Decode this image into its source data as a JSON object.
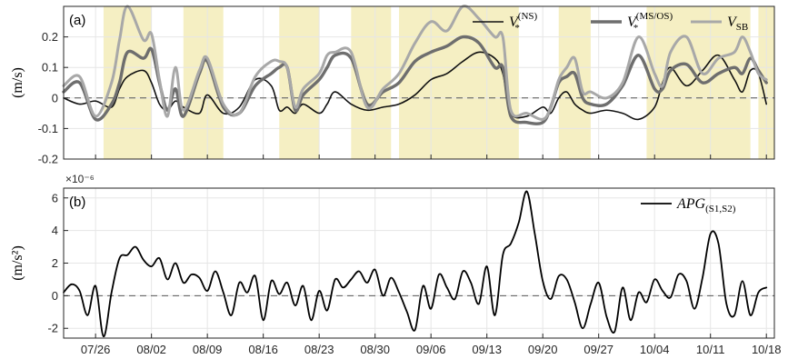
{
  "chart_data": [
    {
      "type": "line",
      "panel_label": "(a)",
      "ylabel": "(m/s)",
      "x_range": [
        "2016-07-22",
        "2016-10-19"
      ],
      "x_ticks": [
        "07/26",
        "08/02",
        "08/09",
        "08/16",
        "08/23",
        "08/30",
        "09/06",
        "09/13",
        "09/20",
        "09/27",
        "10/04",
        "10/11",
        "10/18"
      ],
      "ylim": [
        -0.2,
        0.3
      ],
      "yticks": [
        -0.2,
        -0.1,
        0,
        0.1,
        0.2
      ],
      "ytick_labels": [
        "-0.2",
        "-0.1",
        "0",
        "0.1",
        "0.2"
      ],
      "grid": true,
      "zero_line": "dashed",
      "legend_position": "top-right",
      "shaded_periods": [
        [
          "07/27",
          "08/01"
        ],
        [
          "08/06",
          "08/10"
        ],
        [
          "08/18",
          "08/22"
        ],
        [
          "08/27",
          "08/31"
        ],
        [
          "09/02",
          "09/16"
        ],
        [
          "09/22",
          "09/25"
        ],
        [
          "10/03",
          "10/15"
        ],
        [
          "10/17",
          "10/18"
        ]
      ],
      "shade_color": "#f5efc3",
      "series": [
        {
          "name": "V*(NS)",
          "legend_main": "V",
          "legend_sub": "*",
          "legend_sup": "(NS)",
          "color": "#111111",
          "width": 1.6,
          "x": [
            0,
            2,
            4,
            6,
            7,
            8,
            10,
            11,
            12,
            13,
            14,
            15,
            17,
            18,
            20,
            22,
            24,
            26,
            27,
            28,
            29,
            30,
            32,
            33,
            34,
            36,
            38,
            40,
            42,
            44,
            46,
            48,
            50,
            52,
            54,
            55,
            56,
            58,
            60,
            61,
            62,
            63,
            64,
            65,
            66,
            68,
            70,
            72,
            74,
            75,
            76,
            78,
            80,
            82,
            84,
            85,
            86,
            87,
            88
          ],
          "y": [
            0,
            -0.02,
            -0.01,
            -0.03,
            0.03,
            0.07,
            0.09,
            0.05,
            -0.02,
            -0.04,
            -0.01,
            -0.03,
            -0.05,
            0.01,
            -0.05,
            -0.03,
            0.06,
            0.04,
            -0.04,
            -0.03,
            -0.05,
            -0.02,
            -0.05,
            -0.02,
            0.02,
            -0.02,
            -0.04,
            -0.03,
            -0.02,
            0.01,
            0.06,
            0.08,
            0.12,
            0.15,
            0.13,
            0.08,
            -0.05,
            -0.06,
            -0.03,
            -0.05,
            0.0,
            0.02,
            -0.02,
            -0.04,
            -0.05,
            -0.04,
            -0.05,
            -0.07,
            -0.03,
            0.05,
            0.1,
            0.04,
            0.09,
            0.14,
            0.06,
            0.02,
            0.09,
            0.08,
            -0.02
          ]
        },
        {
          "name": "V*(MS/OS)",
          "legend_main": "V",
          "legend_sub": "*",
          "legend_sup": "(MS/OS)",
          "color": "#6e6e6e",
          "width": 3.4,
          "x": [
            0,
            2,
            4,
            6,
            7,
            8,
            10,
            11,
            12,
            13,
            14,
            15,
            17,
            18,
            20,
            22,
            24,
            26,
            27,
            28,
            29,
            30,
            32,
            33,
            34,
            36,
            38,
            40,
            42,
            44,
            46,
            48,
            50,
            52,
            54,
            55,
            56,
            58,
            60,
            61,
            62,
            63,
            64,
            65,
            66,
            68,
            70,
            72,
            74,
            75,
            76,
            78,
            80,
            82,
            84,
            85,
            86,
            87,
            88
          ],
          "y": [
            0.02,
            0.05,
            -0.07,
            -0.02,
            0.05,
            0.15,
            0.13,
            0.16,
            0.05,
            -0.04,
            0.03,
            -0.06,
            0.08,
            0.12,
            -0.03,
            -0.05,
            0.04,
            0.08,
            0.1,
            0.1,
            -0.04,
            0.01,
            0.06,
            0.1,
            0.14,
            0.13,
            -0.02,
            0.02,
            0.05,
            0.12,
            0.15,
            0.17,
            0.2,
            0.18,
            0.1,
            0.1,
            -0.06,
            -0.08,
            -0.08,
            -0.03,
            0.05,
            0.07,
            0.08,
            0.0,
            -0.02,
            -0.02,
            0.04,
            0.14,
            0.03,
            0.03,
            0.09,
            0.11,
            0.05,
            0.08,
            0.1,
            0.08,
            0.13,
            0.09,
            0.05
          ]
        },
        {
          "name": "VSB",
          "legend_main": "V",
          "legend_sub": "SB",
          "legend_sup": "",
          "color": "#a8a8a8",
          "width": 3.0,
          "x": [
            0,
            2,
            4,
            6,
            7,
            8,
            10,
            11,
            12,
            13,
            14,
            15,
            17,
            18,
            20,
            22,
            24,
            26,
            27,
            28,
            29,
            30,
            32,
            33,
            34,
            36,
            38,
            40,
            42,
            44,
            46,
            48,
            50,
            52,
            54,
            55,
            56,
            58,
            60,
            61,
            62,
            63,
            64,
            65,
            66,
            68,
            70,
            72,
            74,
            75,
            76,
            78,
            80,
            82,
            84,
            85,
            86,
            87,
            88
          ],
          "y": [
            0.04,
            0.07,
            -0.06,
            0.05,
            0.19,
            0.3,
            0.19,
            0.21,
            0.06,
            -0.06,
            0.1,
            -0.04,
            0.09,
            0.13,
            -0.02,
            -0.05,
            0.07,
            0.12,
            0.12,
            0.1,
            -0.03,
            0.03,
            0.08,
            0.14,
            0.15,
            0.15,
            -0.03,
            0.03,
            0.08,
            0.18,
            0.25,
            0.22,
            0.3,
            0.26,
            0.2,
            0.2,
            -0.04,
            -0.05,
            -0.07,
            -0.03,
            0.06,
            0.1,
            0.13,
            0.02,
            0.02,
            0.0,
            0.05,
            0.2,
            0.08,
            0.04,
            0.15,
            0.2,
            0.08,
            0.13,
            0.15,
            0.2,
            0.15,
            0.08,
            0.06
          ]
        }
      ]
    },
    {
      "type": "line",
      "panel_label": "(b)",
      "ylabel": "(m/s²)",
      "y_multiplier": "×10⁻⁶",
      "x_range": [
        "2016-07-22",
        "2016-10-19"
      ],
      "x_ticks": [
        "07/26",
        "08/02",
        "08/09",
        "08/16",
        "08/23",
        "08/30",
        "09/06",
        "09/13",
        "09/20",
        "09/27",
        "10/04",
        "10/11",
        "10/18"
      ],
      "ylim": [
        -2.6,
        6.6
      ],
      "yticks": [
        -2,
        0,
        2,
        4,
        6
      ],
      "ytick_labels": [
        "-2",
        "0",
        "2",
        "4",
        "6"
      ],
      "grid": true,
      "zero_line": "dashed",
      "legend_position": "top-right",
      "series": [
        {
          "name": "APG(S1,S2)",
          "legend_main": "APG",
          "legend_sub": "(S1,S2)",
          "legend_sup": "",
          "color": "#000000",
          "width": 1.8,
          "x": [
            0,
            1,
            2,
            3,
            4,
            5,
            6,
            7,
            8,
            9,
            10,
            11,
            12,
            13,
            14,
            15,
            16,
            17,
            18,
            19,
            20,
            21,
            22,
            23,
            24,
            25,
            26,
            27,
            28,
            29,
            30,
            31,
            32,
            33,
            34,
            35,
            36,
            37,
            38,
            39,
            40,
            41,
            42,
            43,
            44,
            45,
            46,
            47,
            48,
            49,
            50,
            51,
            52,
            53,
            54,
            55,
            56,
            57,
            58,
            59,
            60,
            61,
            62,
            63,
            64,
            65,
            66,
            67,
            68,
            69,
            70,
            71,
            72,
            73,
            74,
            75,
            76,
            77,
            78,
            79,
            80,
            81,
            82,
            83,
            84,
            85,
            86,
            87,
            88
          ],
          "y": [
            0.2,
            0.7,
            0.3,
            -1.2,
            0.6,
            -2.5,
            0.2,
            2.3,
            2.5,
            3.0,
            2.2,
            1.8,
            2.3,
            1.0,
            2.0,
            0.8,
            1.3,
            1.1,
            0.3,
            1.5,
            0.2,
            -1.2,
            0.8,
            0.2,
            1.2,
            -1.5,
            0.9,
            0.1,
            0.8,
            -0.6,
            0.6,
            -1.5,
            0.3,
            -0.9,
            1.0,
            0.5,
            1.0,
            1.5,
            0.8,
            1.6,
            0.0,
            1.1,
            0.2,
            -1.0,
            -2.1,
            0.6,
            -0.8,
            1.3,
            0.5,
            -0.2,
            1.5,
            0.8,
            -0.5,
            1.8,
            -1.2,
            2.5,
            3.2,
            4.5,
            6.4,
            3.8,
            0.9,
            -0.2,
            1.2,
            1.0,
            -0.4,
            -2.0,
            -0.5,
            0.8,
            -1.3,
            -2.2,
            0.5,
            -1.5,
            0.2,
            -0.4,
            1.0,
            0.3,
            -0.1,
            1.3,
            0.9,
            -0.8,
            1.1,
            3.8,
            3.2,
            -0.5,
            -1.2,
            0.9,
            -1.2,
            0.2,
            0.5
          ]
        }
      ]
    }
  ]
}
